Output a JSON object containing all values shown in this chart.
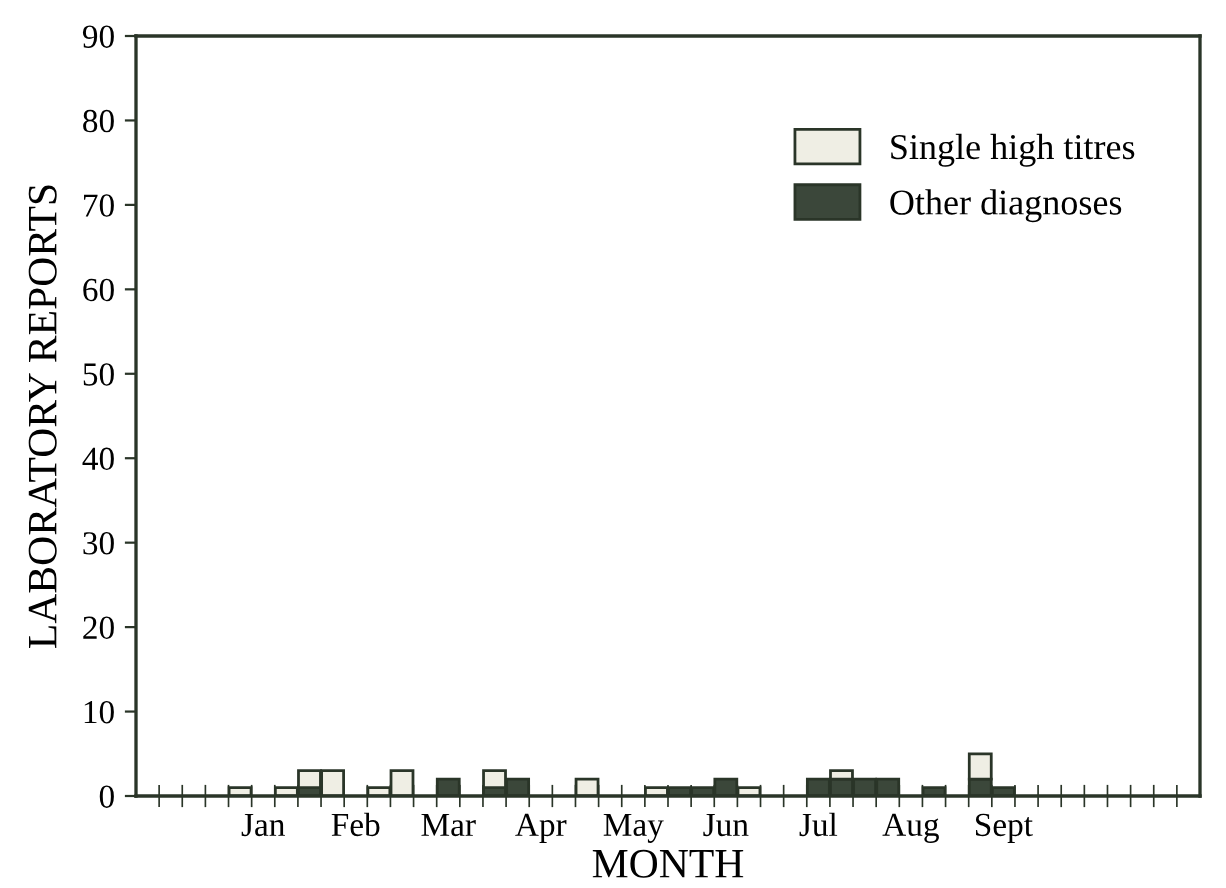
{
  "chart_data": {
    "type": "bar",
    "stacked": true,
    "xlabel": "MONTH",
    "ylabel": "LABORATORY REPORTS",
    "categories": [
      null,
      null,
      null,
      null,
      null,
      "Jan",
      null,
      null,
      null,
      "Feb",
      null,
      null,
      null,
      "Mar",
      null,
      null,
      null,
      "Apr",
      null,
      null,
      null,
      "May",
      null,
      null,
      null,
      "Jun",
      null,
      null,
      null,
      "Jul",
      null,
      null,
      null,
      "Aug",
      null,
      null,
      null,
      "Sept",
      null,
      null,
      null,
      null,
      null,
      null,
      null,
      null
    ],
    "series": [
      {
        "name": "Other diagnoses",
        "color": "#3b473a",
        "values": [
          null,
          null,
          null,
          null,
          null,
          null,
          null,
          1,
          null,
          null,
          null,
          null,
          null,
          2,
          null,
          1,
          2,
          null,
          null,
          null,
          null,
          null,
          null,
          1,
          1,
          2,
          null,
          null,
          null,
          2,
          2,
          2,
          2,
          null,
          1,
          null,
          2,
          1,
          null,
          null,
          null,
          null,
          null,
          null,
          null,
          null
        ]
      },
      {
        "name": "Single high titres",
        "color": "#efeee4",
        "values": [
          null,
          null,
          null,
          null,
          1,
          null,
          1,
          2,
          3,
          null,
          1,
          3,
          null,
          null,
          null,
          2,
          null,
          null,
          null,
          2,
          null,
          null,
          1,
          null,
          null,
          null,
          1,
          null,
          null,
          null,
          1,
          null,
          null,
          null,
          null,
          null,
          3,
          null,
          null,
          null,
          null,
          null,
          null,
          null,
          null,
          null
        ]
      }
    ],
    "ylim": [
      0,
      90
    ],
    "yticks": [
      0,
      10,
      20,
      30,
      40,
      50,
      60,
      70,
      80,
      90
    ],
    "grid": false,
    "legend": "top right"
  }
}
